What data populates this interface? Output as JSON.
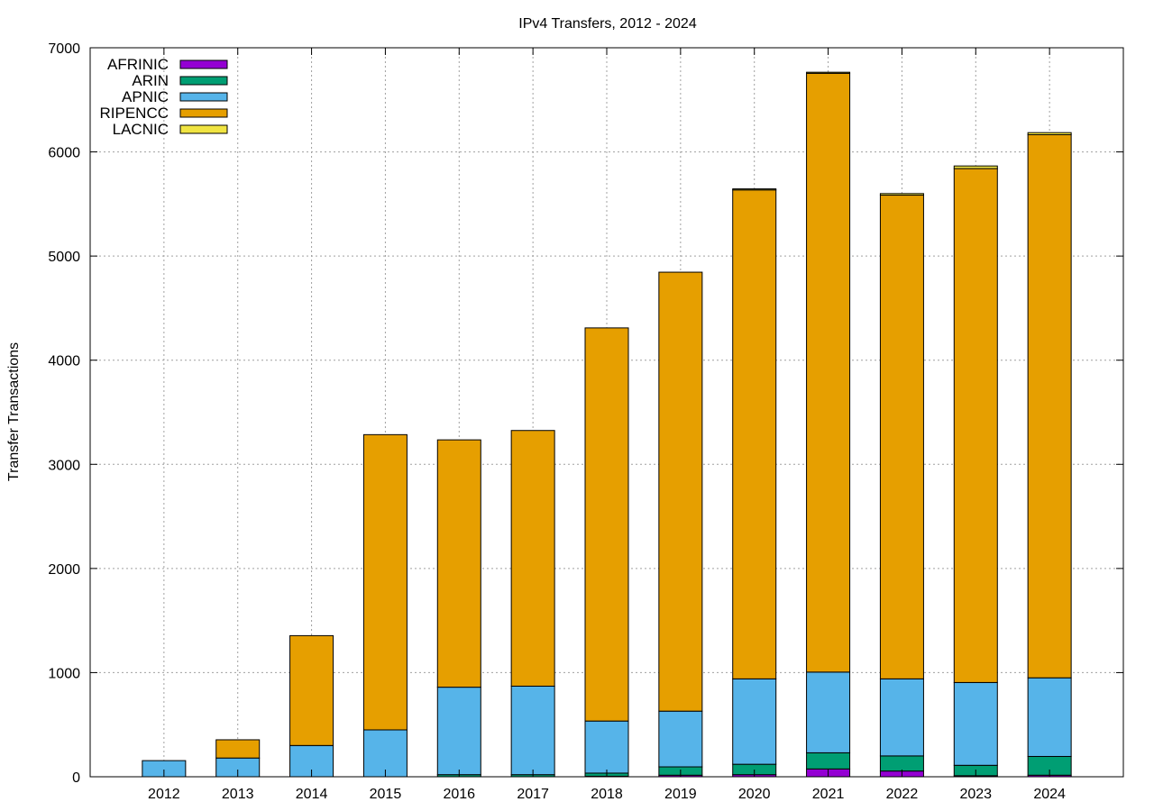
{
  "chart_data": {
    "type": "bar",
    "stacked": true,
    "title": "IPv4 Transfers, 2012 - 2024",
    "xlabel": "",
    "ylabel": "Transfer Transactions",
    "ylim": [
      0,
      7000
    ],
    "yticks": [
      "0",
      "1000",
      "2000",
      "3000",
      "4000",
      "5000",
      "6000",
      "7000"
    ],
    "grid": true,
    "legend_position": "top-left",
    "categories": [
      "2012",
      "2013",
      "2014",
      "2015",
      "2016",
      "2017",
      "2018",
      "2019",
      "2020",
      "2021",
      "2022",
      "2023",
      "2024"
    ],
    "series": [
      {
        "name": "AFRINIC",
        "color": "#9400d3",
        "values": [
          0,
          0,
          0,
          0,
          0,
          0,
          5,
          15,
          20,
          75,
          55,
          10,
          15
        ]
      },
      {
        "name": "ARIN",
        "color": "#009e73",
        "values": [
          0,
          0,
          0,
          0,
          20,
          20,
          30,
          80,
          100,
          155,
          145,
          100,
          180
        ]
      },
      {
        "name": "APNIC",
        "color": "#56b4e9",
        "values": [
          155,
          180,
          300,
          450,
          840,
          850,
          500,
          535,
          820,
          775,
          740,
          795,
          755
        ]
      },
      {
        "name": "RIPENCC",
        "color": "#e69f00",
        "values": [
          0,
          175,
          1055,
          2835,
          2375,
          2455,
          3775,
          4215,
          4695,
          5750,
          4645,
          4935,
          5215
        ]
      },
      {
        "name": "LACNIC",
        "color": "#f0e442",
        "values": [
          0,
          0,
          0,
          0,
          0,
          0,
          0,
          0,
          10,
          10,
          15,
          25,
          20
        ]
      }
    ]
  }
}
